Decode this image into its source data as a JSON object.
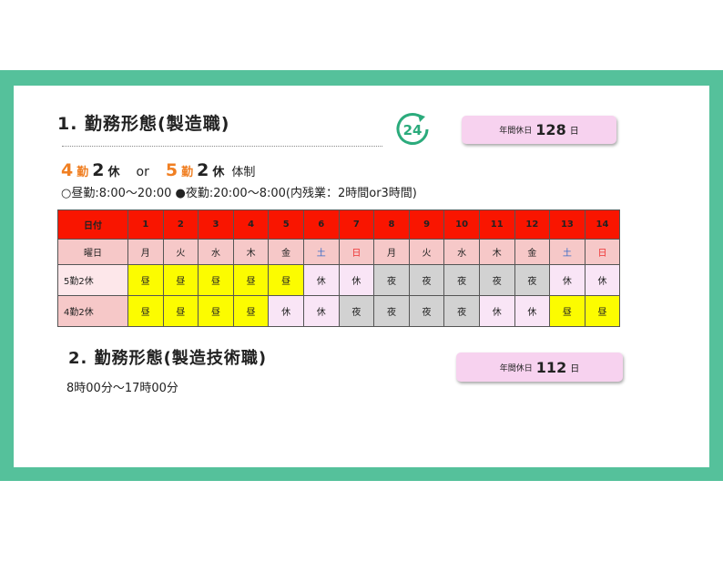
{
  "section1": {
    "title": "1. 勤務形態(製造職)",
    "icon": "24-hour-icon",
    "icon_text": "24",
    "holidays_label": "年間休日",
    "holidays_value": "128",
    "holidays_unit": "日",
    "system": {
      "n1": "4",
      "k1": "勤",
      "n2": "2",
      "k2": "休",
      "or": "or",
      "n3": "5",
      "k3": "勤",
      "n4": "2",
      "k4": "休",
      "suffix": "体制"
    },
    "hours": "○昼勤:8:00〜20:00 ●夜勤:20:00〜8:00(内残業：2時間or3時間)"
  },
  "table": {
    "header": [
      "日付",
      "1",
      "2",
      "3",
      "4",
      "5",
      "6",
      "7",
      "8",
      "9",
      "10",
      "11",
      "12",
      "13",
      "14"
    ],
    "weekday": [
      "曜日",
      "月",
      "火",
      "水",
      "木",
      "金",
      "土",
      "日",
      "月",
      "火",
      "水",
      "木",
      "金",
      "土",
      "日"
    ],
    "rows": [
      {
        "label": "5勤2休",
        "cells": [
          "昼",
          "昼",
          "昼",
          "昼",
          "昼",
          "休",
          "休",
          "夜",
          "夜",
          "夜",
          "夜",
          "夜",
          "休",
          "休"
        ]
      },
      {
        "label": "4勤2休",
        "cells": [
          "昼",
          "昼",
          "昼",
          "昼",
          "休",
          "休",
          "夜",
          "夜",
          "夜",
          "夜",
          "休",
          "休",
          "昼",
          "昼"
        ]
      }
    ],
    "colors": {
      "header": "#f91500",
      "day": "#fcfc00",
      "night": "#d2d2d2",
      "off": "#f9e5f6"
    }
  },
  "section2": {
    "title": "2. 勤務形態(製造技術職)",
    "holidays_label": "年間休日",
    "holidays_value": "112",
    "holidays_unit": "日",
    "hours": "8時00分〜17時00分"
  }
}
